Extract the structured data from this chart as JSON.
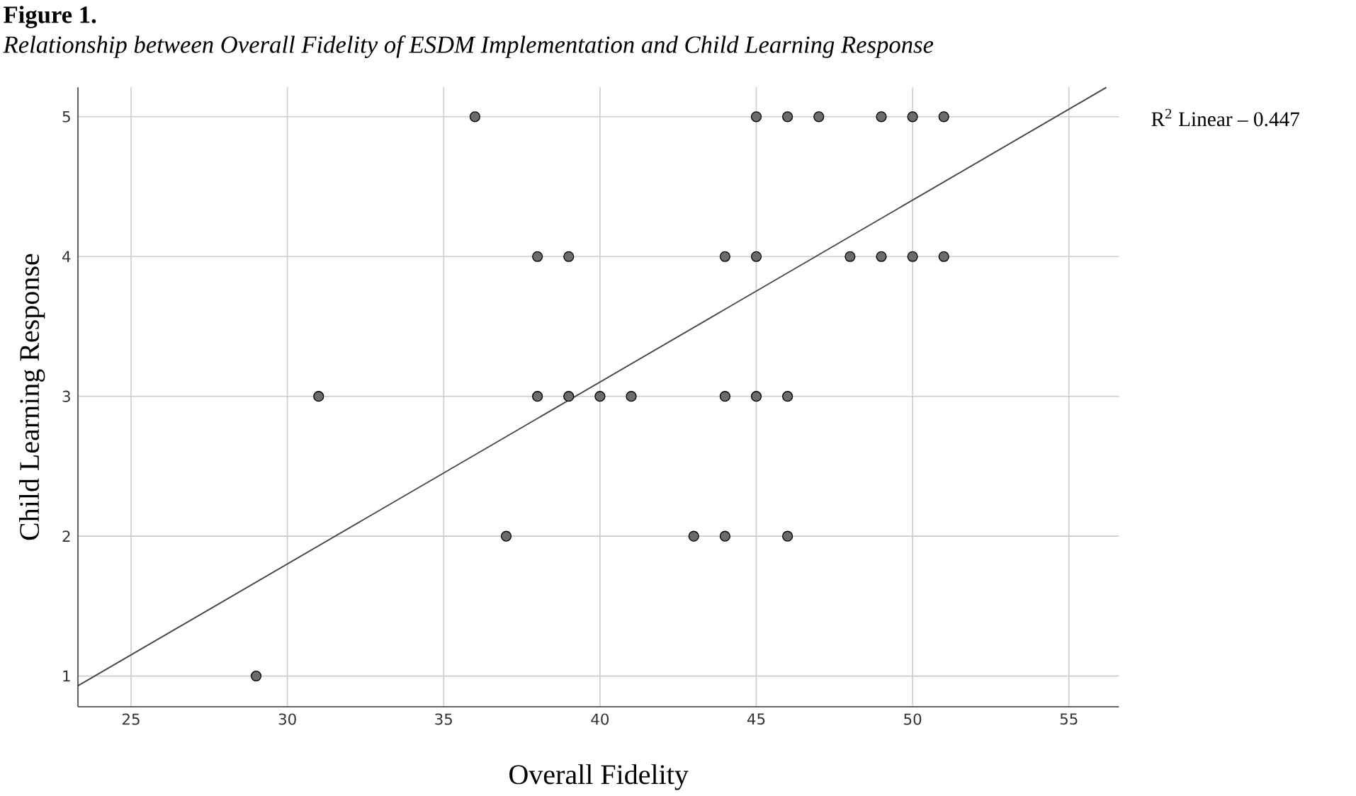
{
  "chart_data": {
    "type": "scatter",
    "title": "Figure 1.",
    "subtitle": "Relationship between Overall Fidelity of ESDM Implementation and Child Learning Response",
    "xlabel": "Overall Fidelity",
    "ylabel": "Child Learning Response",
    "annotations": [
      "R$^{2}$ Linear – 0.447"
    ],
    "xlim": [
      23.3,
      56.6
    ],
    "ylim": [
      0.78,
      5.21
    ],
    "xticks": [
      25,
      30,
      35,
      40,
      45,
      50,
      55
    ],
    "yticks": [
      1,
      2,
      3,
      4,
      5
    ],
    "grid": true,
    "marker": "circle",
    "series": [
      {
        "color": "#6b6b6b",
        "x": [
          36,
          45,
          46,
          47,
          49,
          50,
          51,
          38,
          39,
          44,
          45,
          48,
          49,
          50,
          51,
          31,
          38,
          39,
          40,
          41,
          44,
          45,
          46,
          37,
          43,
          44,
          46,
          29
        ],
        "values": [
          5,
          5,
          5,
          5,
          5,
          5,
          5,
          4,
          4,
          4,
          4,
          4,
          4,
          4,
          4,
          3,
          3,
          3,
          3,
          3,
          3,
          3,
          3,
          2,
          2,
          2,
          2,
          1
        ]
      },
      {
        "type": "line",
        "color": "#444444",
        "x": [
          23.3,
          56.2
        ],
        "values": [
          0.93,
          5.21
        ],
        "marker": "none"
      }
    ]
  }
}
